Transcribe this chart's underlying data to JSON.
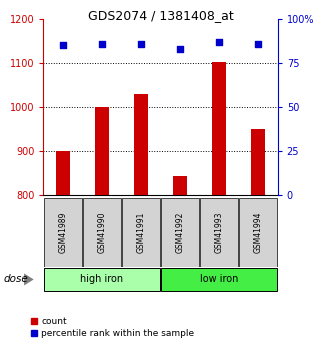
{
  "title": "GDS2074 / 1381408_at",
  "samples": [
    "GSM41989",
    "GSM41990",
    "GSM41991",
    "GSM41992",
    "GSM41993",
    "GSM41994"
  ],
  "counts": [
    900,
    1000,
    1030,
    843,
    1103,
    950
  ],
  "percentile_ranks": [
    85,
    86,
    86,
    83,
    87,
    86
  ],
  "groups": [
    "high iron",
    "high iron",
    "high iron",
    "low iron",
    "low iron",
    "low iron"
  ],
  "high_iron_color": "#AAFFAA",
  "low_iron_color": "#44EE44",
  "bar_color": "#CC0000",
  "dot_color": "#0000CC",
  "ylim_left": [
    800,
    1200
  ],
  "ylim_right": [
    0,
    100
  ],
  "yticks_left": [
    800,
    900,
    1000,
    1100,
    1200
  ],
  "yticks_right": [
    0,
    25,
    50,
    75,
    100
  ],
  "grid_values": [
    900,
    1000,
    1100
  ],
  "left_axis_color": "#CC0000",
  "right_axis_color": "#0000CC",
  "legend_count_label": "count",
  "legend_pct_label": "percentile rank within the sample",
  "dose_label": "dose",
  "group_labels": [
    "high iron",
    "low iron"
  ],
  "sample_box_color": "#D3D3D3"
}
